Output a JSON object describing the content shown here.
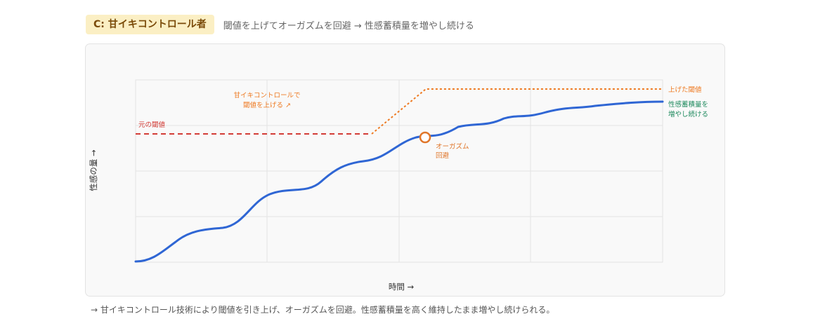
{
  "header": {
    "badge": "C: 甘イキコントロール者",
    "subtitle": "閾値を上げてオーガズムを回避 → 性感蓄積量を増やし続ける"
  },
  "chart_data": {
    "type": "line",
    "xlabel": "時間 →",
    "ylabel": "性感の量 →",
    "grid": true,
    "annotations": {
      "original_threshold": "元の閾値",
      "raise_threshold": [
        "甘イキコントロールで",
        "閾値を上げる ↗"
      ],
      "orgasm_avoid": [
        "オーガズム",
        "回避"
      ],
      "raised_threshold": "上げた閾値",
      "accumulation": [
        "性感蓄積量を",
        "増やし続ける"
      ]
    },
    "colors": {
      "curve": "#2f66d4",
      "original_threshold": "#d33c36",
      "raised_threshold": "#ee7a22",
      "accumulation_label": "#1f8a5e",
      "orgasm_marker": "#e0762a"
    }
  },
  "caption": "→ 甘イキコントロール技術により閾値を引き上げ、オーガズムを回避。性感蓄積量を高く維持したまま増やし続けられる。"
}
